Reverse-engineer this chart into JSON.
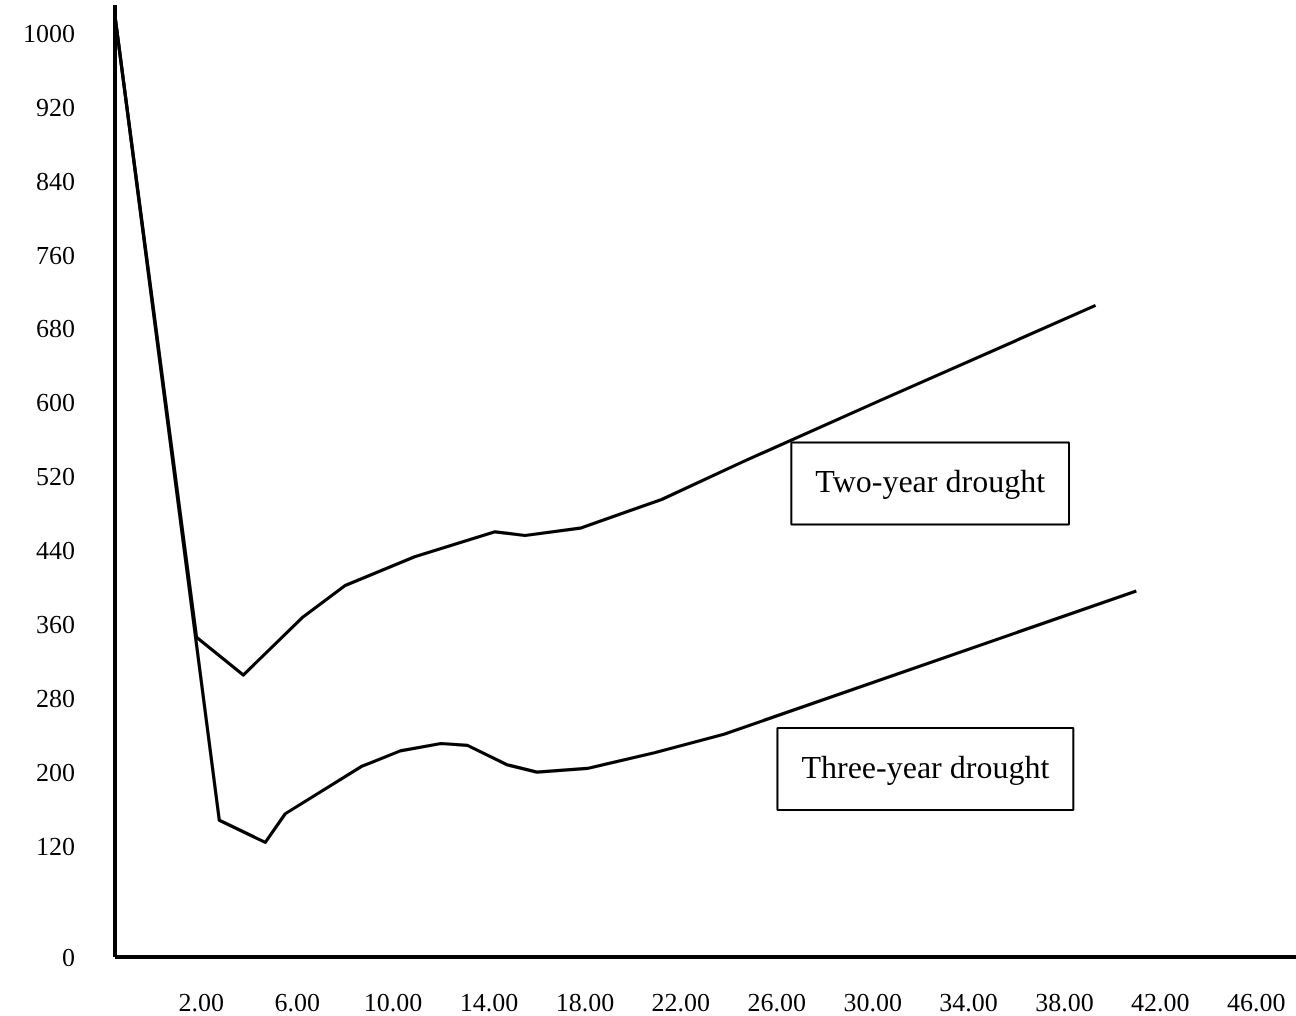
{
  "chart_data": {
    "type": "line",
    "xlim": [
      -1.6,
      47.7
    ],
    "xticks": [
      {
        "value": 2,
        "label": "2.00"
      },
      {
        "value": 6,
        "label": "6.00"
      },
      {
        "value": 10,
        "label": "10.00"
      },
      {
        "value": 14,
        "label": "14.00"
      },
      {
        "value": 18,
        "label": "18.00"
      },
      {
        "value": 22,
        "label": "22.00"
      },
      {
        "value": 26,
        "label": "26.00"
      },
      {
        "value": 30,
        "label": "30.00"
      },
      {
        "value": 34,
        "label": "34.00"
      },
      {
        "value": 38,
        "label": "38.00"
      },
      {
        "value": 42,
        "label": "42.00"
      },
      {
        "value": 46,
        "label": "46.00"
      }
    ],
    "ylim": [
      0,
      1030
    ],
    "yticks": [
      0,
      120,
      200,
      280,
      360,
      440,
      520,
      600,
      680,
      760,
      840,
      920,
      1000
    ],
    "grid": false,
    "marker": "none",
    "line_style": "solid",
    "series": [
      {
        "color": "#000000",
        "x": [
          -1.6,
          1.8,
          3.75,
          6.2,
          8.0,
          10.9,
          14.25,
          15.5,
          17.8,
          21.2,
          24.6,
          30.3,
          39.3
        ],
        "values": [
          1018,
          346,
          305,
          367,
          402,
          433,
          460,
          456,
          464,
          495,
          536,
          602,
          705
        ]
      },
      {
        "color": "#000000",
        "x": [
          -1.6,
          2.75,
          4.67,
          5.5,
          8.67,
          10.3,
          12.0,
          13.1,
          14.75,
          16.0,
          18.1,
          20.9,
          23.8,
          41.0
        ],
        "values": [
          1018,
          148,
          124,
          155,
          206,
          223,
          231,
          229,
          208,
          200,
          204,
          221,
          241,
          396
        ]
      }
    ],
    "annotations": [
      {
        "text": "Two-year drought",
        "x": 32.4,
        "y": 626
      },
      {
        "text": "Three-year drought",
        "x": 32.2,
        "y": 317
      }
    ]
  }
}
